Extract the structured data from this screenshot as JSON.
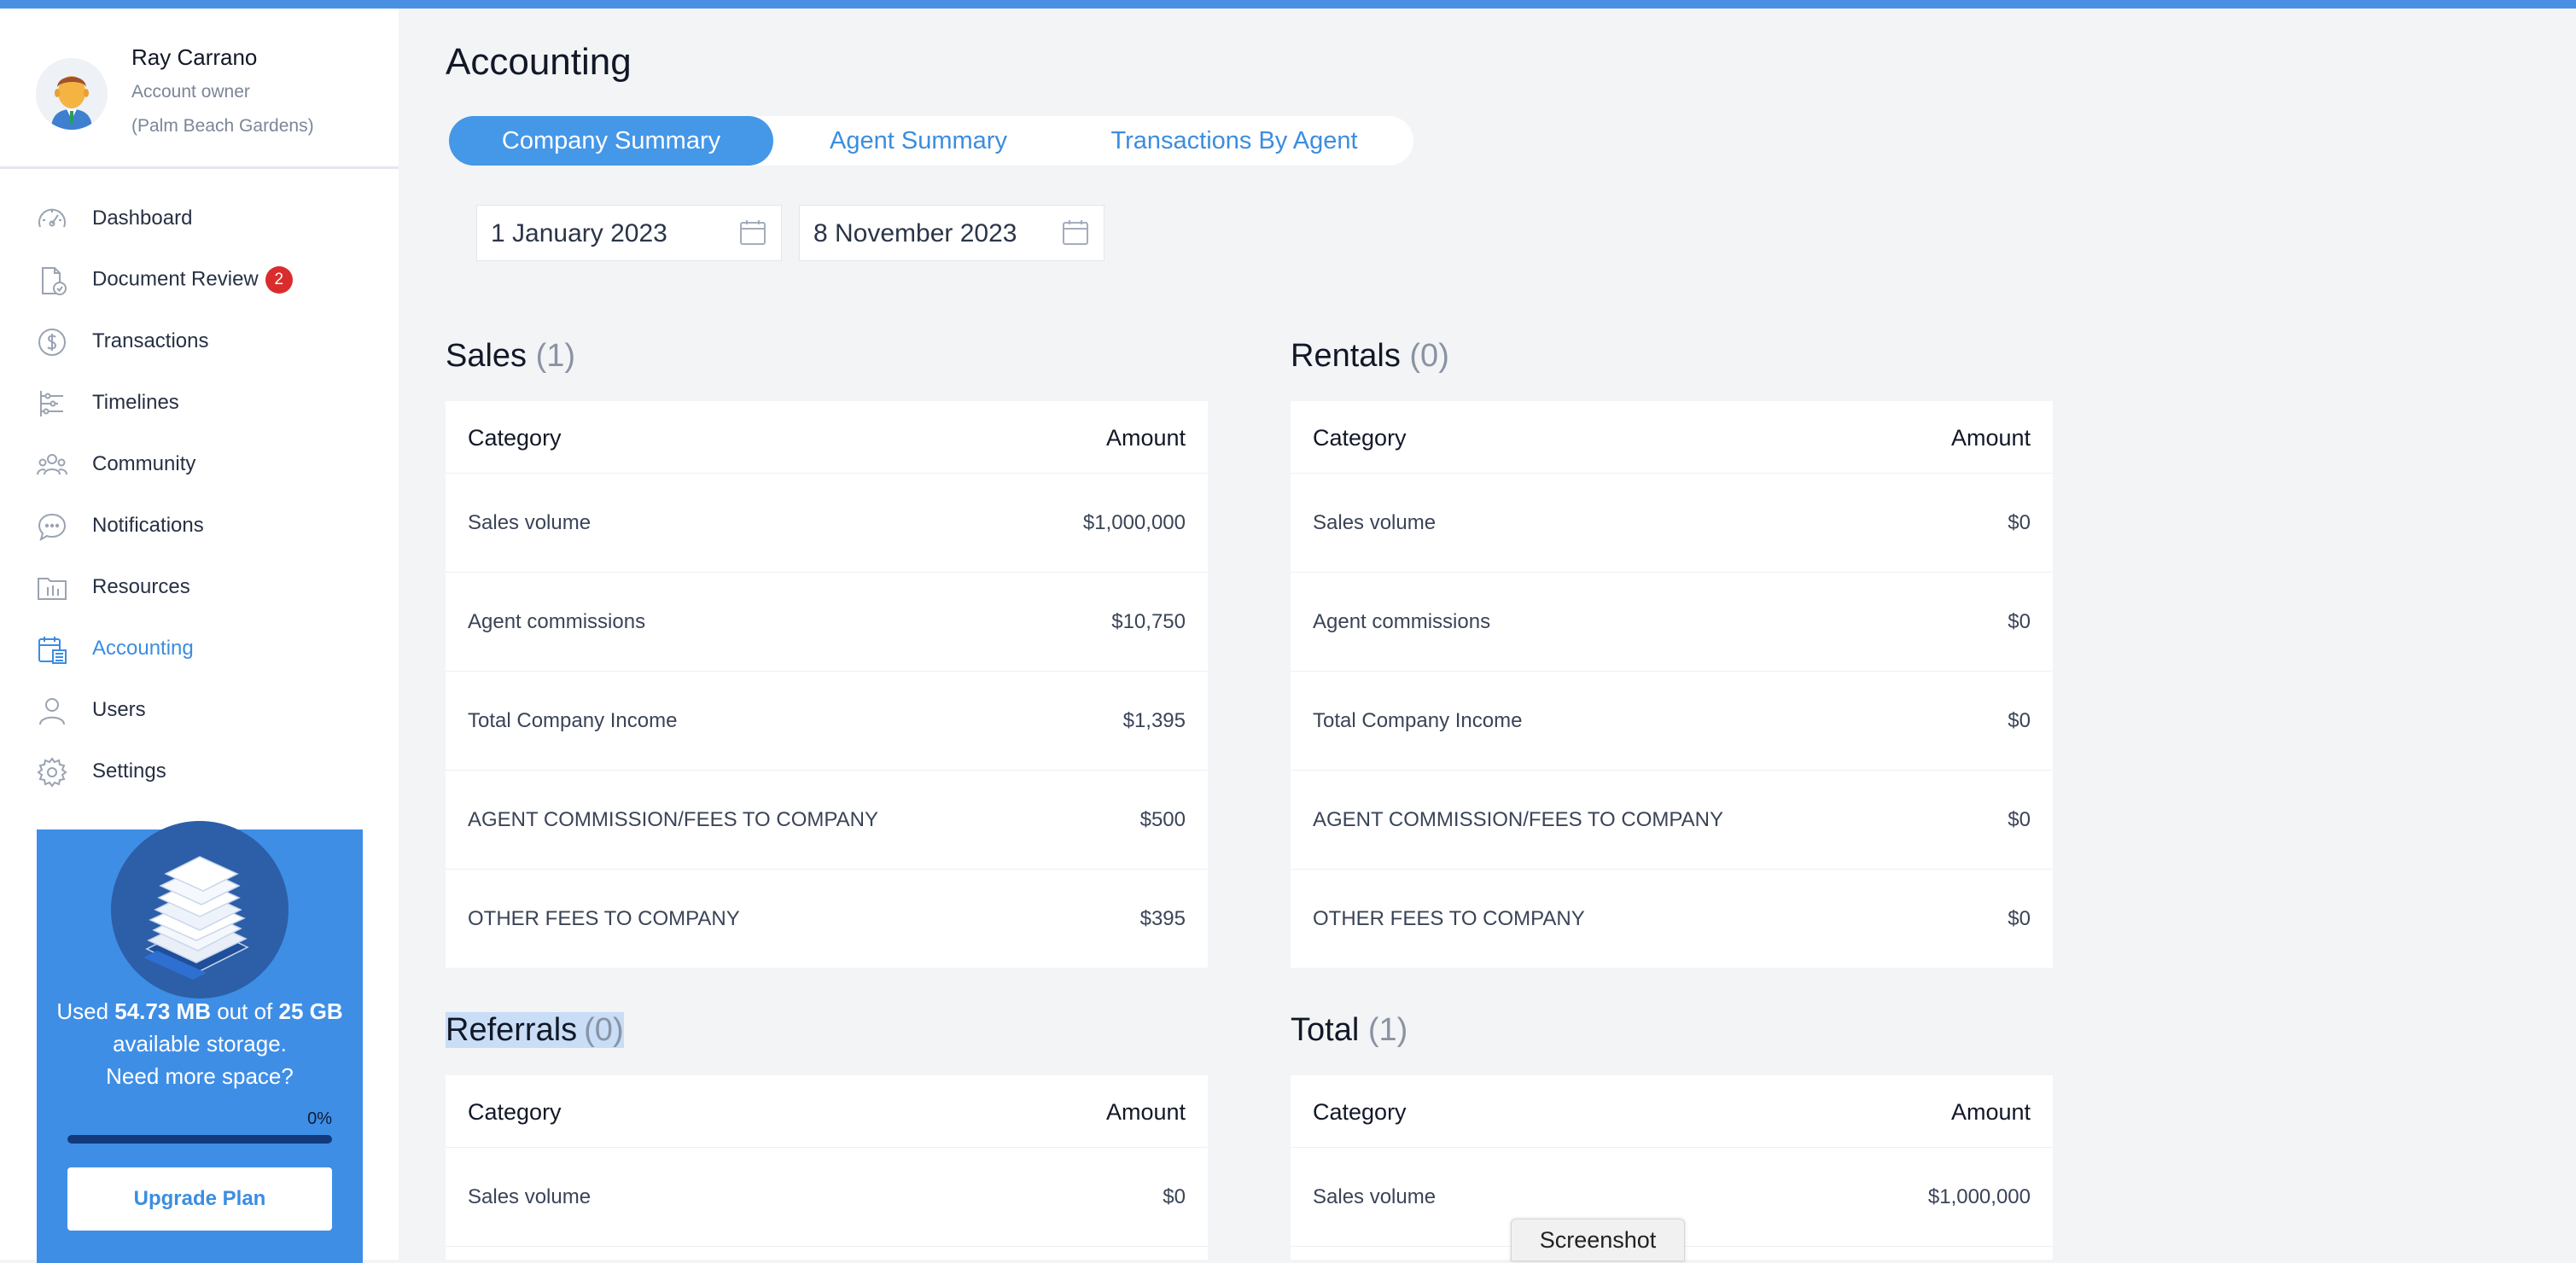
{
  "colors": {
    "accent": "#3b8de0",
    "badge": "#d92d2d",
    "storage_bg": "#3e8ee6"
  },
  "profile": {
    "name": "Ray Carrano",
    "role": "Account owner",
    "location": "(Palm Beach Gardens)"
  },
  "sidebar": {
    "items": [
      {
        "label": "Dashboard",
        "icon": "gauge-icon"
      },
      {
        "label": "Document Review",
        "icon": "document-check-icon",
        "badge": "2"
      },
      {
        "label": "Transactions",
        "icon": "dollar-circle-icon"
      },
      {
        "label": "Timelines",
        "icon": "timeline-icon"
      },
      {
        "label": "Community",
        "icon": "community-icon"
      },
      {
        "label": "Notifications",
        "icon": "chat-bubble-icon"
      },
      {
        "label": "Resources",
        "icon": "folder-icon"
      },
      {
        "label": "Accounting",
        "icon": "accounting-calendar-icon",
        "active": true
      },
      {
        "label": "Users",
        "icon": "user-icon"
      },
      {
        "label": "Settings",
        "icon": "gear-icon"
      }
    ]
  },
  "storage": {
    "used_prefix": "Used ",
    "used": "54.73 MB",
    "out_of": " out of ",
    "total": "25 GB",
    "suffix": " available storage.",
    "need_more": "Need more space?",
    "percent_label": "0%",
    "percent_value": 0,
    "upgrade_label": "Upgrade Plan"
  },
  "main": {
    "title": "Accounting",
    "tabs": [
      {
        "label": "Company Summary",
        "active": true
      },
      {
        "label": "Agent Summary"
      },
      {
        "label": "Transactions By Agent"
      }
    ],
    "date_from": "1 January 2023",
    "date_to": "8 November 2023",
    "column_category": "Category",
    "column_amount": "Amount",
    "sections": {
      "sales": {
        "title": "Sales",
        "count": "(1)",
        "rows": [
          {
            "category": "Sales volume",
            "amount": "$1,000,000"
          },
          {
            "category": "Agent commissions",
            "amount": "$10,750"
          },
          {
            "category": "Total Company Income",
            "amount": "$1,395"
          },
          {
            "category": "AGENT COMMISSION/FEES TO COMPANY",
            "amount": "$500"
          },
          {
            "category": "OTHER FEES TO COMPANY",
            "amount": "$395"
          }
        ]
      },
      "rentals": {
        "title": "Rentals",
        "count": "(0)",
        "rows": [
          {
            "category": "Sales volume",
            "amount": "$0"
          },
          {
            "category": "Agent commissions",
            "amount": "$0"
          },
          {
            "category": "Total Company Income",
            "amount": "$0"
          },
          {
            "category": "AGENT COMMISSION/FEES TO COMPANY",
            "amount": "$0"
          },
          {
            "category": "OTHER FEES TO COMPANY",
            "amount": "$0"
          }
        ]
      },
      "referrals": {
        "title": "Referrals",
        "count": "(0)",
        "rows": [
          {
            "category": "Sales volume",
            "amount": "$0"
          }
        ]
      },
      "total": {
        "title": "Total",
        "count": "(1)",
        "rows": [
          {
            "category": "Sales volume",
            "amount": "$1,000,000"
          }
        ]
      }
    }
  },
  "screenshot_tooltip": "Screenshot"
}
